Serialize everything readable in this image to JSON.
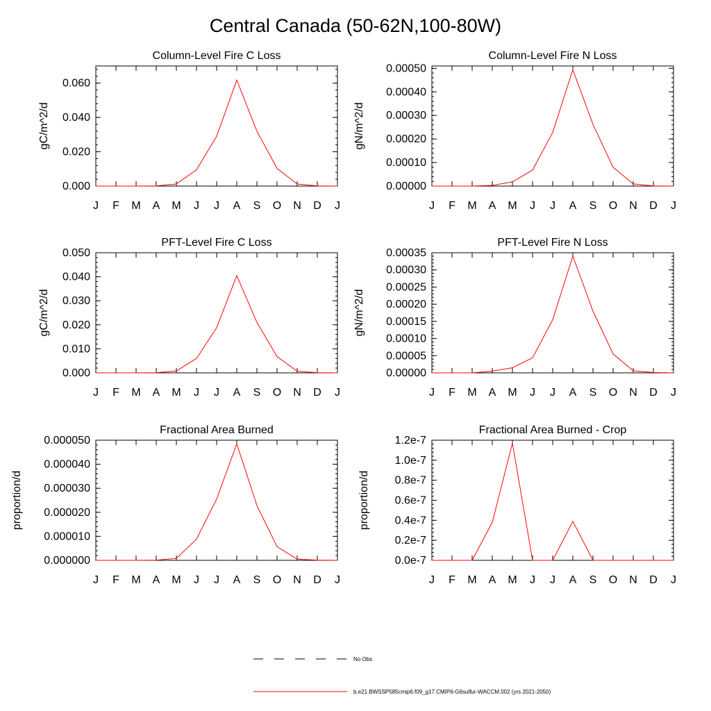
{
  "page": {
    "title": "Central Canada (50-62N,100-80W)"
  },
  "colors": {
    "model_line": "#ff0000",
    "obs_line": "#000000",
    "axis": "#000000"
  },
  "legend": {
    "items": [
      {
        "label": "No Obs",
        "style": "dashed",
        "color": "#000000"
      },
      {
        "label": "b.e21.BWSSP585cmip6.f09_g17.CMIP6-G6sulfur-WACCM.002 (yrs 2021-2050)",
        "style": "solid",
        "color": "#ff0000"
      }
    ]
  },
  "chart_data": [
    {
      "type": "line",
      "title": "Column-Level Fire C Loss",
      "xlabel": "",
      "ylabel": "gC/m^2/d",
      "categories": [
        "J",
        "F",
        "M",
        "A",
        "M",
        "J",
        "J",
        "A",
        "S",
        "O",
        "N",
        "D",
        "J"
      ],
      "ylim": [
        0,
        0.07
      ],
      "yticks": [
        "0.000",
        "0.020",
        "0.040",
        "0.060"
      ],
      "ytick_values": [
        0,
        0.02,
        0.04,
        0.06
      ],
      "series": [
        {
          "name": "b.e21.BWSSP585cmip6.f09_g17.CMIP6-G6sulfur-WACCM.002 (yrs 2021-2050)",
          "values": [
            0,
            0,
            0,
            0.0001,
            0.0012,
            0.0095,
            0.029,
            0.0618,
            0.032,
            0.0103,
            0.0012,
            0.0001,
            0
          ]
        }
      ]
    },
    {
      "type": "line",
      "title": "Column-Level Fire N Loss",
      "xlabel": "",
      "ylabel": "gN/m^2/d",
      "categories": [
        "J",
        "F",
        "M",
        "A",
        "M",
        "J",
        "J",
        "A",
        "S",
        "O",
        "N",
        "D",
        "J"
      ],
      "ylim": [
        0,
        0.00051
      ],
      "yticks": [
        "0.00000",
        "0.00010",
        "0.00020",
        "0.00030",
        "0.00040",
        "0.00050"
      ],
      "ytick_values": [
        0,
        0.0001,
        0.0002,
        0.0003,
        0.0004,
        0.0005
      ],
      "series": [
        {
          "name": "b.e21.BWSSP585cmip6.f09_g17.CMIP6-G6sulfur-WACCM.002 (yrs 2021-2050)",
          "values": [
            0,
            0,
            0,
            3e-06,
            1.8e-05,
            6.8e-05,
            0.000228,
            0.000494,
            0.000262,
            8e-05,
            9e-06,
            1e-06,
            0
          ]
        }
      ]
    },
    {
      "type": "line",
      "title": "PFT-Level Fire C Loss",
      "xlabel": "",
      "ylabel": "gC/m^2/d",
      "categories": [
        "J",
        "F",
        "M",
        "A",
        "M",
        "J",
        "J",
        "A",
        "S",
        "O",
        "N",
        "D",
        "J"
      ],
      "ylim": [
        0,
        0.05
      ],
      "yticks": [
        "0.000",
        "0.010",
        "0.020",
        "0.030",
        "0.040",
        "0.050"
      ],
      "ytick_values": [
        0,
        0.01,
        0.02,
        0.03,
        0.04,
        0.05
      ],
      "series": [
        {
          "name": "b.e21.BWSSP585cmip6.f09_g17.CMIP6-G6sulfur-WACCM.002 (yrs 2021-2050)",
          "values": [
            0,
            0,
            0,
            0.0001,
            0.0008,
            0.006,
            0.0188,
            0.0405,
            0.021,
            0.0068,
            0.0007,
            0.0001,
            0
          ]
        }
      ]
    },
    {
      "type": "line",
      "title": "PFT-Level Fire N Loss",
      "xlabel": "",
      "ylabel": "gN/m^2/d",
      "categories": [
        "J",
        "F",
        "M",
        "A",
        "M",
        "J",
        "J",
        "A",
        "S",
        "O",
        "N",
        "D",
        "J"
      ],
      "ylim": [
        0,
        0.00035
      ],
      "yticks": [
        "0.00000",
        "0.00005",
        "0.00010",
        "0.00015",
        "0.00020",
        "0.00025",
        "0.00030",
        "0.00035"
      ],
      "ytick_values": [
        0,
        5e-05,
        0.0001,
        0.00015,
        0.0002,
        0.00025,
        0.0003,
        0.00035
      ],
      "series": [
        {
          "name": "b.e21.BWSSP585cmip6.f09_g17.CMIP6-G6sulfur-WACCM.002 (yrs 2021-2050)",
          "values": [
            0,
            0,
            0,
            5e-06,
            1.5e-05,
            4.4e-05,
            0.000155,
            0.00034,
            0.00018,
            5.5e-05,
            6e-06,
            1e-06,
            0
          ]
        }
      ]
    },
    {
      "type": "line",
      "title": "Fractional Area Burned",
      "xlabel": "",
      "ylabel": "proportion/d",
      "categories": [
        "J",
        "F",
        "M",
        "A",
        "M",
        "J",
        "J",
        "A",
        "S",
        "O",
        "N",
        "D",
        "J"
      ],
      "ylim": [
        0,
        5e-05
      ],
      "yticks": [
        "0.000000",
        "0.000010",
        "0.000020",
        "0.000030",
        "0.000040",
        "0.000050"
      ],
      "ytick_values": [
        0,
        1e-05,
        2e-05,
        3e-05,
        4e-05,
        5e-05
      ],
      "series": [
        {
          "name": "b.e21.BWSSP585cmip6.f09_g17.CMIP6-G6sulfur-WACCM.002 (yrs 2021-2050)",
          "values": [
            0,
            0,
            0,
            1e-07,
            8e-07,
            8.8e-06,
            2.55e-05,
            4.85e-05,
            2.28e-05,
            5.7e-06,
            5e-07,
            1e-07,
            0
          ]
        }
      ]
    },
    {
      "type": "line",
      "title": "Fractional Area Burned - Crop",
      "xlabel": "",
      "ylabel": "proportion/d",
      "categories": [
        "J",
        "F",
        "M",
        "A",
        "M",
        "J",
        "J",
        "A",
        "S",
        "O",
        "N",
        "D",
        "J"
      ],
      "ylim": [
        0,
        1.2e-07
      ],
      "yticks": [
        "0.0e-7",
        "0.2e-7",
        "0.4e-7",
        "0.6e-7",
        "0.8e-7",
        "1.0e-7",
        "1.2e-7"
      ],
      "ytick_values": [
        0,
        2e-08,
        4e-08,
        6e-08,
        8e-08,
        1e-07,
        1.2e-07
      ],
      "series": [
        {
          "name": "b.e21.BWSSP585cmip6.f09_g17.CMIP6-G6sulfur-WACCM.002 (yrs 2021-2050)",
          "values": [
            0,
            0,
            0,
            3.8e-08,
            1.17e-07,
            0,
            0,
            3.9e-08,
            0,
            0,
            0,
            0,
            0
          ]
        }
      ]
    }
  ]
}
